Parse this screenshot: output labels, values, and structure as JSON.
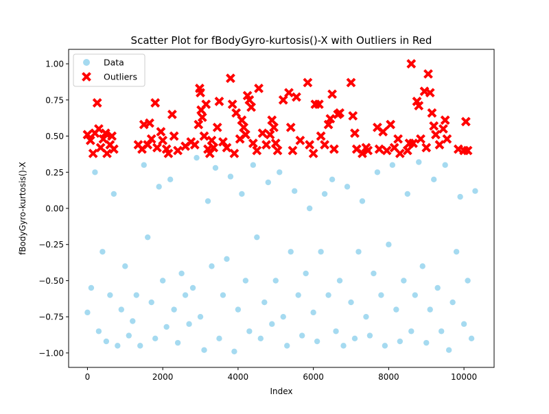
{
  "chart_data": {
    "type": "scatter",
    "title": "Scatter Plot for fBodyGyro-kurtosis()-X with Outliers in Red",
    "xlabel": "Index",
    "ylabel": "fBodyGyro-kurtosis()-X",
    "xlim": [
      -500,
      10800
    ],
    "ylim": [
      -1.1,
      1.1
    ],
    "x_ticks": [
      0,
      2000,
      4000,
      6000,
      8000,
      10000
    ],
    "x_tick_labels": [
      "0",
      "2000",
      "4000",
      "6000",
      "8000",
      "10000"
    ],
    "y_ticks": [
      -1.0,
      -0.75,
      -0.5,
      -0.25,
      0.0,
      0.25,
      0.5,
      0.75,
      1.0
    ],
    "y_tick_labels": [
      "−1.00",
      "−0.75",
      "−0.50",
      "−0.25",
      "0.00",
      "0.25",
      "0.50",
      "0.75",
      "1.00"
    ],
    "legend_position": "top-left",
    "grid": false,
    "series": [
      {
        "name": "Data",
        "marker": "circle",
        "color": "#87ceeb",
        "n_points": 10299,
        "x_range": [
          0,
          10298
        ],
        "value_range": [
          -0.99,
          0.37
        ],
        "points": [
          [
            0,
            -0.72
          ],
          [
            100,
            -0.55
          ],
          [
            200,
            0.25
          ],
          [
            300,
            -0.85
          ],
          [
            400,
            -0.3
          ],
          [
            500,
            -0.92
          ],
          [
            600,
            -0.6
          ],
          [
            700,
            0.1
          ],
          [
            800,
            -0.95
          ],
          [
            900,
            -0.7
          ],
          [
            1000,
            -0.4
          ],
          [
            1100,
            -0.88
          ],
          [
            1200,
            -0.78
          ],
          [
            1300,
            -0.6
          ],
          [
            1400,
            -0.95
          ],
          [
            1500,
            0.3
          ],
          [
            1600,
            -0.2
          ],
          [
            1700,
            -0.65
          ],
          [
            1800,
            -0.9
          ],
          [
            1900,
            0.15
          ],
          [
            2000,
            -0.5
          ],
          [
            2100,
            -0.82
          ],
          [
            2200,
            0.2
          ],
          [
            2300,
            -0.7
          ],
          [
            2400,
            -0.93
          ],
          [
            2500,
            -0.45
          ],
          [
            2600,
            -0.6
          ],
          [
            2700,
            -0.8
          ],
          [
            2800,
            -0.55
          ],
          [
            2900,
            0.35
          ],
          [
            3000,
            -0.75
          ],
          [
            3100,
            -0.98
          ],
          [
            3200,
            0.05
          ],
          [
            3300,
            -0.4
          ],
          [
            3400,
            0.28
          ],
          [
            3500,
            -0.9
          ],
          [
            3600,
            -0.6
          ],
          [
            3700,
            -0.35
          ],
          [
            3800,
            0.22
          ],
          [
            3900,
            -0.99
          ],
          [
            4000,
            -0.7
          ],
          [
            4100,
            0.1
          ],
          [
            4200,
            -0.5
          ],
          [
            4300,
            -0.85
          ],
          [
            4400,
            0.3
          ],
          [
            4500,
            -0.2
          ],
          [
            4600,
            -0.9
          ],
          [
            4700,
            -0.65
          ],
          [
            4800,
            0.18
          ],
          [
            4900,
            -0.8
          ],
          [
            5000,
            -0.5
          ],
          [
            5100,
            0.25
          ],
          [
            5200,
            -0.75
          ],
          [
            5300,
            -0.95
          ],
          [
            5400,
            -0.3
          ],
          [
            5500,
            0.12
          ],
          [
            5600,
            -0.6
          ],
          [
            5700,
            -0.88
          ],
          [
            5800,
            -0.45
          ],
          [
            5900,
            0.0
          ],
          [
            6000,
            -0.72
          ],
          [
            6100,
            -0.92
          ],
          [
            6200,
            -0.3
          ],
          [
            6300,
            0.1
          ],
          [
            6400,
            -0.6
          ],
          [
            6500,
            0.2
          ],
          [
            6600,
            -0.85
          ],
          [
            6700,
            -0.5
          ],
          [
            6800,
            -0.95
          ],
          [
            6900,
            0.15
          ],
          [
            7000,
            -0.65
          ],
          [
            7100,
            -0.9
          ],
          [
            7200,
            -0.3
          ],
          [
            7300,
            0.05
          ],
          [
            7400,
            -0.75
          ],
          [
            7500,
            -0.88
          ],
          [
            7600,
            -0.45
          ],
          [
            7700,
            0.25
          ],
          [
            7800,
            -0.6
          ],
          [
            7900,
            -0.95
          ],
          [
            8000,
            -0.25
          ],
          [
            8100,
            0.3
          ],
          [
            8200,
            -0.7
          ],
          [
            8300,
            -0.92
          ],
          [
            8400,
            -0.5
          ],
          [
            8500,
            0.1
          ],
          [
            8600,
            -0.85
          ],
          [
            8700,
            -0.6
          ],
          [
            8800,
            0.32
          ],
          [
            8900,
            -0.4
          ],
          [
            9000,
            -0.93
          ],
          [
            9100,
            -0.7
          ],
          [
            9200,
            0.2
          ],
          [
            9300,
            -0.55
          ],
          [
            9400,
            -0.85
          ],
          [
            9500,
            0.3
          ],
          [
            9600,
            -0.98
          ],
          [
            9700,
            -0.65
          ],
          [
            9800,
            -0.3
          ],
          [
            9900,
            0.08
          ],
          [
            10000,
            -0.8
          ],
          [
            10100,
            -0.5
          ],
          [
            10200,
            -0.9
          ],
          [
            10298,
            0.12
          ]
        ]
      },
      {
        "name": "Outliers",
        "marker": "x",
        "color": "#ff0000",
        "value_range": [
          0.38,
          1.0
        ],
        "points": [
          [
            0,
            0.51
          ],
          [
            80,
            0.47
          ],
          [
            150,
            0.38
          ],
          [
            200,
            0.52
          ],
          [
            260,
            0.73
          ],
          [
            300,
            0.55
          ],
          [
            350,
            0.42
          ],
          [
            420,
            0.48
          ],
          [
            480,
            0.52
          ],
          [
            520,
            0.38
          ],
          [
            600,
            0.44
          ],
          [
            650,
            0.5
          ],
          [
            700,
            0.41
          ],
          [
            1350,
            0.44
          ],
          [
            1450,
            0.41
          ],
          [
            1500,
            0.58
          ],
          [
            1600,
            0.44
          ],
          [
            1650,
            0.59
          ],
          [
            1700,
            0.48
          ],
          [
            1800,
            0.73
          ],
          [
            1850,
            0.42
          ],
          [
            1950,
            0.53
          ],
          [
            2000,
            0.47
          ],
          [
            2100,
            0.41
          ],
          [
            2150,
            0.38
          ],
          [
            2250,
            0.65
          ],
          [
            2300,
            0.5
          ],
          [
            2400,
            0.4
          ],
          [
            2600,
            0.43
          ],
          [
            2750,
            0.46
          ],
          [
            2850,
            0.44
          ],
          [
            2950,
            0.58
          ],
          [
            2980,
            0.83
          ],
          [
            3000,
            0.8
          ],
          [
            3020,
            0.68
          ],
          [
            3050,
            0.63
          ],
          [
            3100,
            0.5
          ],
          [
            3150,
            0.72
          ],
          [
            3200,
            0.41
          ],
          [
            3250,
            0.38
          ],
          [
            3300,
            0.47
          ],
          [
            3350,
            0.42
          ],
          [
            3450,
            0.56
          ],
          [
            3500,
            0.74
          ],
          [
            3600,
            0.46
          ],
          [
            3700,
            0.42
          ],
          [
            3800,
            0.9
          ],
          [
            3850,
            0.72
          ],
          [
            3900,
            0.38
          ],
          [
            3950,
            0.66
          ],
          [
            4050,
            0.48
          ],
          [
            4100,
            0.61
          ],
          [
            4150,
            0.56
          ],
          [
            4200,
            0.51
          ],
          [
            4250,
            0.78
          ],
          [
            4300,
            0.75
          ],
          [
            4350,
            0.7
          ],
          [
            4400,
            0.45
          ],
          [
            4500,
            0.4
          ],
          [
            4550,
            0.83
          ],
          [
            4650,
            0.52
          ],
          [
            4750,
            0.44
          ],
          [
            4850,
            0.51
          ],
          [
            4900,
            0.61
          ],
          [
            4950,
            0.56
          ],
          [
            5000,
            0.45
          ],
          [
            5050,
            0.4
          ],
          [
            5200,
            0.75
          ],
          [
            5350,
            0.8
          ],
          [
            5400,
            0.56
          ],
          [
            5450,
            0.4
          ],
          [
            5550,
            0.77
          ],
          [
            5650,
            0.47
          ],
          [
            5850,
            0.87
          ],
          [
            5900,
            0.44
          ],
          [
            6000,
            0.38
          ],
          [
            6050,
            0.72
          ],
          [
            6150,
            0.72
          ],
          [
            6200,
            0.5
          ],
          [
            6300,
            0.44
          ],
          [
            6400,
            0.58
          ],
          [
            6450,
            0.62
          ],
          [
            6500,
            0.79
          ],
          [
            6550,
            0.41
          ],
          [
            6650,
            0.65
          ],
          [
            6700,
            0.66
          ],
          [
            7000,
            0.87
          ],
          [
            7050,
            0.64
          ],
          [
            7100,
            0.52
          ],
          [
            7150,
            0.41
          ],
          [
            7300,
            0.38
          ],
          [
            7400,
            0.42
          ],
          [
            7450,
            0.4
          ],
          [
            7700,
            0.56
          ],
          [
            7750,
            0.41
          ],
          [
            7850,
            0.53
          ],
          [
            7950,
            0.4
          ],
          [
            8050,
            0.58
          ],
          [
            8150,
            0.42
          ],
          [
            8250,
            0.48
          ],
          [
            8300,
            0.38
          ],
          [
            8500,
            0.4
          ],
          [
            8550,
            0.45
          ],
          [
            8600,
            1.0
          ],
          [
            8650,
            0.45
          ],
          [
            8750,
            0.74
          ],
          [
            8800,
            0.71
          ],
          [
            8850,
            0.48
          ],
          [
            8950,
            0.81
          ],
          [
            9000,
            0.42
          ],
          [
            9050,
            0.93
          ],
          [
            9100,
            0.8
          ],
          [
            9150,
            0.66
          ],
          [
            9200,
            0.57
          ],
          [
            9250,
            0.51
          ],
          [
            9350,
            0.44
          ],
          [
            9450,
            0.55
          ],
          [
            9500,
            0.61
          ],
          [
            9550,
            0.48
          ],
          [
            9850,
            0.41
          ],
          [
            10000,
            0.4
          ],
          [
            10050,
            0.6
          ],
          [
            10100,
            0.4
          ]
        ]
      }
    ]
  }
}
